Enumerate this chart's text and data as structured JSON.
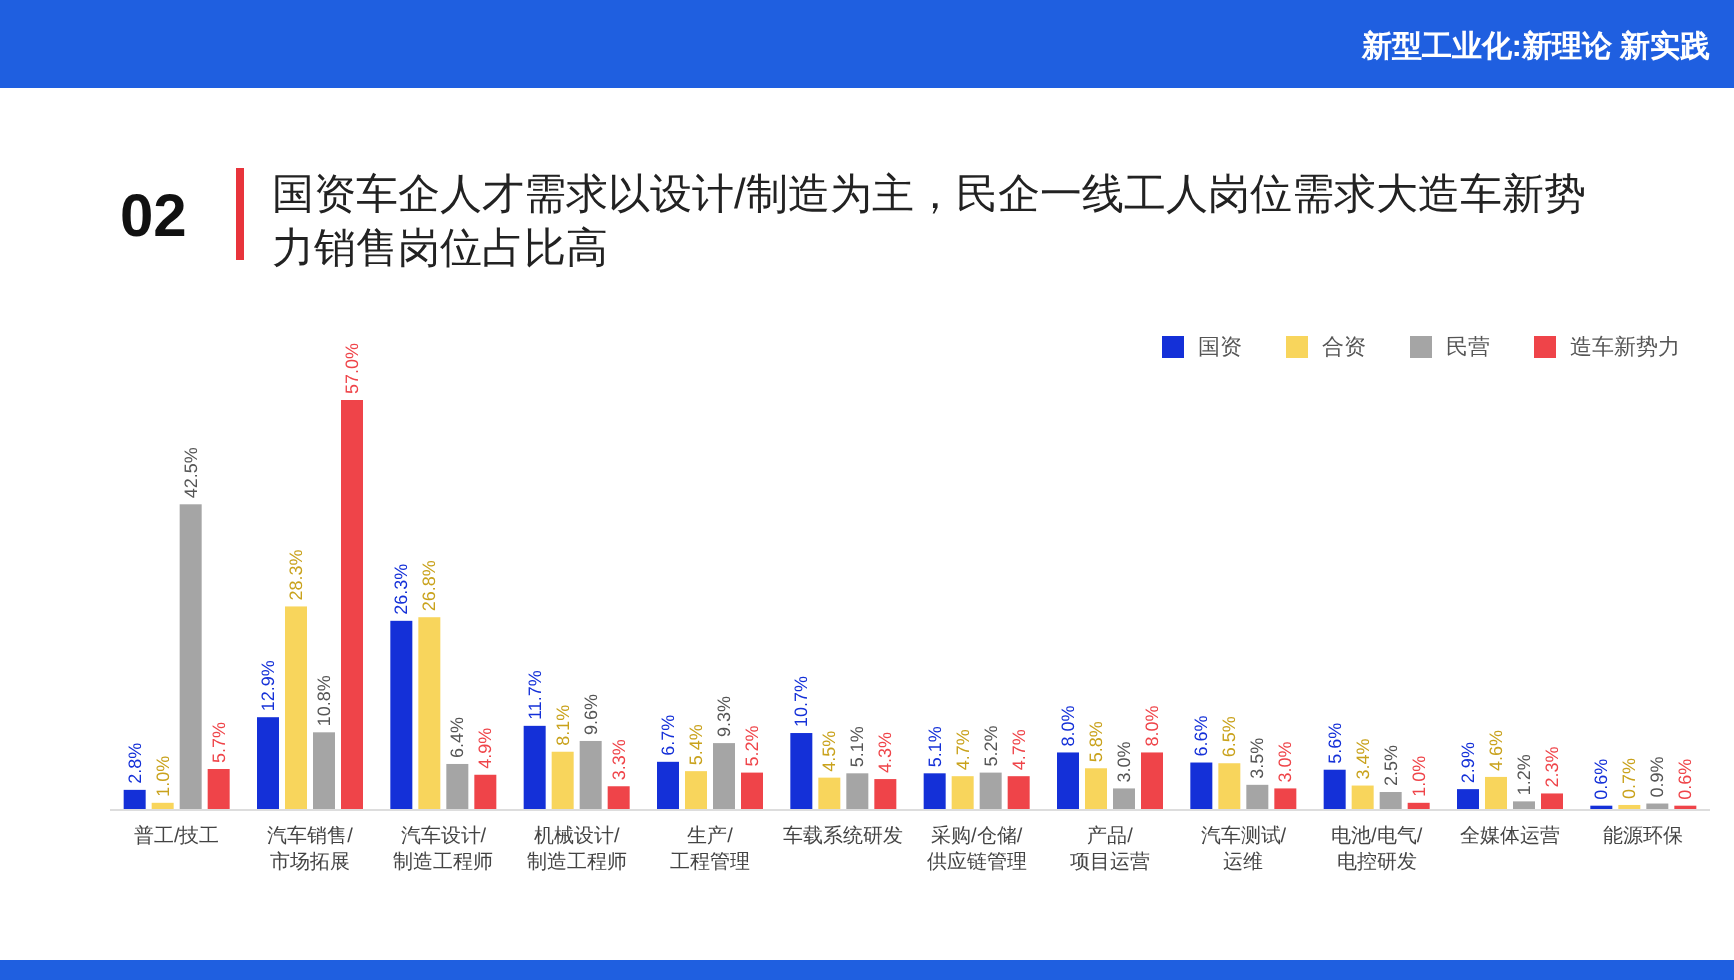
{
  "chart_data": {
    "type": "bar",
    "title": "国资车企人才需求以设计/制造为主，民企一线工人岗位需求大造车新势力销售岗位占比高",
    "subtitle": "新型工业化:新理论 新实践",
    "annotations": [
      "02"
    ],
    "categories": [
      "普工/技工",
      "汽车销售/市场拓展",
      "汽车设计/制造工程师",
      "机械设计/制造工程师",
      "生产/工程管理",
      "车载系统研发",
      "采购/仓储/供应链管理",
      "产品/项目运营",
      "汽车测试/运维",
      "电池/电气/电控研发",
      "全媒体运营",
      "能源环保"
    ],
    "series": [
      {
        "name": "国资",
        "color": "#1430d8",
        "values": [
          2.8,
          12.9,
          26.3,
          11.7,
          6.7,
          10.7,
          5.1,
          8.0,
          6.6,
          5.6,
          2.9,
          0.6
        ],
        "value_labels": [
          "2.8%",
          "12.9%",
          "26.3%",
          "11.7%",
          "6.7%",
          "10.7%",
          "5.1%",
          "8.0%",
          "6.6%",
          "5.6%",
          "2.9%",
          "0.6%"
        ]
      },
      {
        "name": "合资",
        "color": "#f8d55c",
        "values": [
          1.0,
          28.3,
          26.8,
          8.1,
          5.4,
          4.5,
          4.7,
          5.8,
          6.5,
          3.4,
          4.6,
          0.7
        ],
        "value_labels": [
          "1.0%",
          "28.3%",
          "26.8%",
          "8.1%",
          "5.4%",
          "4.5%",
          "4.7%",
          "5.8%",
          "6.5%",
          "3.4%",
          "4.6%",
          "0.7%"
        ]
      },
      {
        "name": "民营",
        "color": "#a5a5a5",
        "values": [
          42.5,
          10.8,
          6.4,
          9.6,
          9.3,
          5.1,
          5.2,
          3.0,
          3.5,
          2.5,
          1.2,
          0.9
        ],
        "value_labels": [
          "42.5%",
          "10.8%",
          "6.4%",
          "9.6%",
          "9.3%",
          "5.1%",
          "5.2%",
          "3.0%",
          "3.5%",
          "2.5%",
          "1.2%",
          "0.9%"
        ]
      },
      {
        "name": "造车新势力",
        "color": "#ef4449",
        "values": [
          5.7,
          57.0,
          4.9,
          3.3,
          5.2,
          4.3,
          4.7,
          8.0,
          3.0,
          1.0,
          2.3,
          0.6
        ],
        "value_labels": [
          "5.7%",
          "57.0%",
          "4.9%",
          "3.3%",
          "5.2%",
          "4.3%",
          "4.7%",
          "8.0%",
          "3.0%",
          "1.0%",
          "2.3%",
          "0.6%"
        ]
      }
    ],
    "legend": "top right"
  }
}
